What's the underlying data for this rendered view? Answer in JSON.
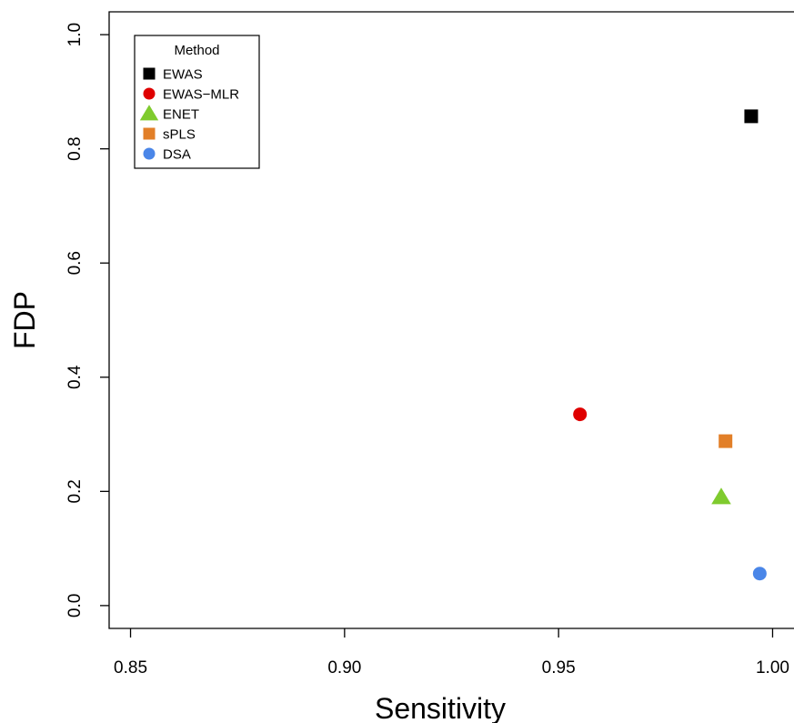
{
  "chart_data": {
    "type": "scatter",
    "title": "",
    "xlabel": "Sensitivity",
    "ylabel": "FDP",
    "xlim": [
      0.845,
      1.005
    ],
    "ylim": [
      -0.04,
      1.04
    ],
    "x_ticks": [
      {
        "value": 0.85,
        "label": "0.85"
      },
      {
        "value": 0.9,
        "label": "0.90"
      },
      {
        "value": 0.95,
        "label": "0.95"
      },
      {
        "value": 1.0,
        "label": "1.00"
      }
    ],
    "y_ticks": [
      {
        "value": 0.0,
        "label": "0.0"
      },
      {
        "value": 0.2,
        "label": "0.2"
      },
      {
        "value": 0.4,
        "label": "0.4"
      },
      {
        "value": 0.6,
        "label": "0.6"
      },
      {
        "value": 0.8,
        "label": "0.8"
      },
      {
        "value": 1.0,
        "label": "1.0"
      }
    ],
    "grid": false,
    "legend": {
      "title": "Method",
      "placement": "top-left"
    },
    "series": [
      {
        "name": "EWAS",
        "shape": "square",
        "color": "#000000",
        "x": 0.995,
        "y": 0.857
      },
      {
        "name": "EWAS−MLR",
        "shape": "circle",
        "color": "#DF0000",
        "x": 0.955,
        "y": 0.335
      },
      {
        "name": "ENET",
        "shape": "triangle",
        "color": "#7FCB2E",
        "x": 0.988,
        "y": 0.19
      },
      {
        "name": "sPLS",
        "shape": "square",
        "color": "#E27F28",
        "x": 0.989,
        "y": 0.288
      },
      {
        "name": "DSA",
        "shape": "circle",
        "color": "#4A86E8",
        "x": 0.997,
        "y": 0.056
      }
    ]
  }
}
